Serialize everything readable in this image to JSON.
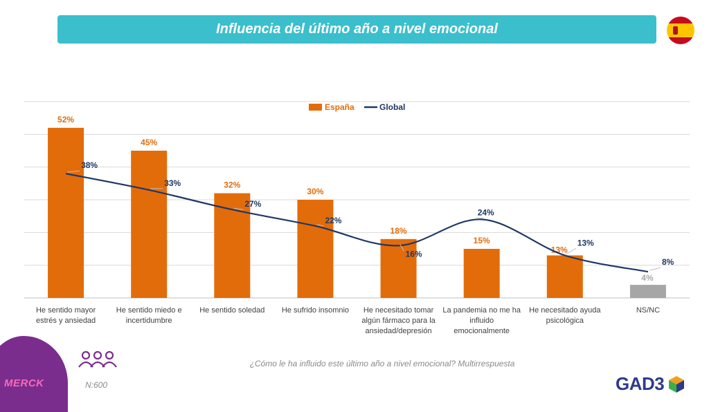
{
  "header": {
    "title": "Influencia del último año a nivel emocional",
    "flag_icon": "spain-flag-icon"
  },
  "footer": {
    "question": "¿Cómo le ha influido este último año a nivel emocional? Multirrespuesta",
    "sample": "N:600",
    "brand_left": "MERCK",
    "brand_right": "GAD3",
    "people_icon": "people-group-icon"
  },
  "colors": {
    "espana": "#e36c0a",
    "global": "#1f3864",
    "nsnc": "#a6a6a6",
    "title_bar": "#3bbfcc",
    "bar_label": "#e36c0a"
  },
  "chart_data": {
    "type": "bar",
    "title": "",
    "xlabel": "",
    "ylabel": "",
    "ylim": [
      0,
      60
    ],
    "grid": true,
    "legend_position": "top-center",
    "categories": [
      [
        "He sentido mayor",
        "estrés y ansiedad"
      ],
      [
        "He sentido miedo e",
        "incertidumbre"
      ],
      [
        "He sentido soledad"
      ],
      [
        "He sufrido insomnio"
      ],
      [
        "He necesitado tomar",
        "algún fármaco para la",
        "ansiedad/depresión"
      ],
      [
        "La pandemia no me ha",
        "influido",
        "emocionalmente"
      ],
      [
        "He necesitado ayuda",
        "psicológica"
      ],
      [
        "NS/NC"
      ]
    ],
    "series": [
      {
        "name": "España",
        "type": "bar",
        "values": [
          52,
          45,
          32,
          30,
          18,
          15,
          13,
          4
        ],
        "labels": [
          "52%",
          "45%",
          "32%",
          "30%",
          "18%",
          "15%",
          "13%",
          "4%"
        ]
      },
      {
        "name": "Global",
        "type": "line",
        "values": [
          38,
          33,
          27,
          22,
          16,
          24,
          13,
          8
        ],
        "labels": [
          "38%",
          "33%",
          "27%",
          "22%",
          "16%",
          "24%",
          "13%",
          "8%"
        ]
      }
    ]
  }
}
